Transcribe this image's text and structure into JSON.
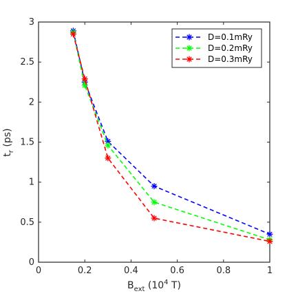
{
  "chart_data": {
    "type": "line",
    "xlabel": {
      "main": "B",
      "sub": "ext",
      "unit_pre": " (10",
      "unit_sup": "4",
      "unit_post": " T)"
    },
    "ylabel": {
      "main": "t",
      "sub": "r",
      "unit": " (ps)"
    },
    "xlim": [
      0,
      1
    ],
    "ylim": [
      0,
      3
    ],
    "xticks": [
      0,
      0.2,
      0.4,
      0.6,
      0.8,
      1
    ],
    "xtick_labels": [
      "0",
      "0.2",
      "0.4",
      "0.6",
      "0.8",
      "1"
    ],
    "yticks": [
      0,
      0.5,
      1,
      1.5,
      2,
      2.5,
      3
    ],
    "ytick_labels": [
      "0",
      "0.5",
      "1",
      "1.5",
      "2",
      "2.5",
      "3"
    ],
    "grid": false,
    "legend_position": "top-right",
    "x": [
      0.15,
      0.2,
      0.3,
      0.5,
      1.0
    ],
    "series": [
      {
        "name": "D=0.1mRy",
        "color": "#0000ff",
        "values": [
          2.89,
          2.25,
          1.51,
          0.95,
          0.35
        ]
      },
      {
        "name": "D=0.2mRy",
        "color": "#00ff00",
        "values": [
          2.87,
          2.21,
          1.46,
          0.75,
          0.28
        ]
      },
      {
        "name": "D=0.3mRy",
        "color": "#ff0000",
        "values": [
          2.85,
          2.29,
          1.3,
          0.55,
          0.26
        ]
      }
    ]
  }
}
